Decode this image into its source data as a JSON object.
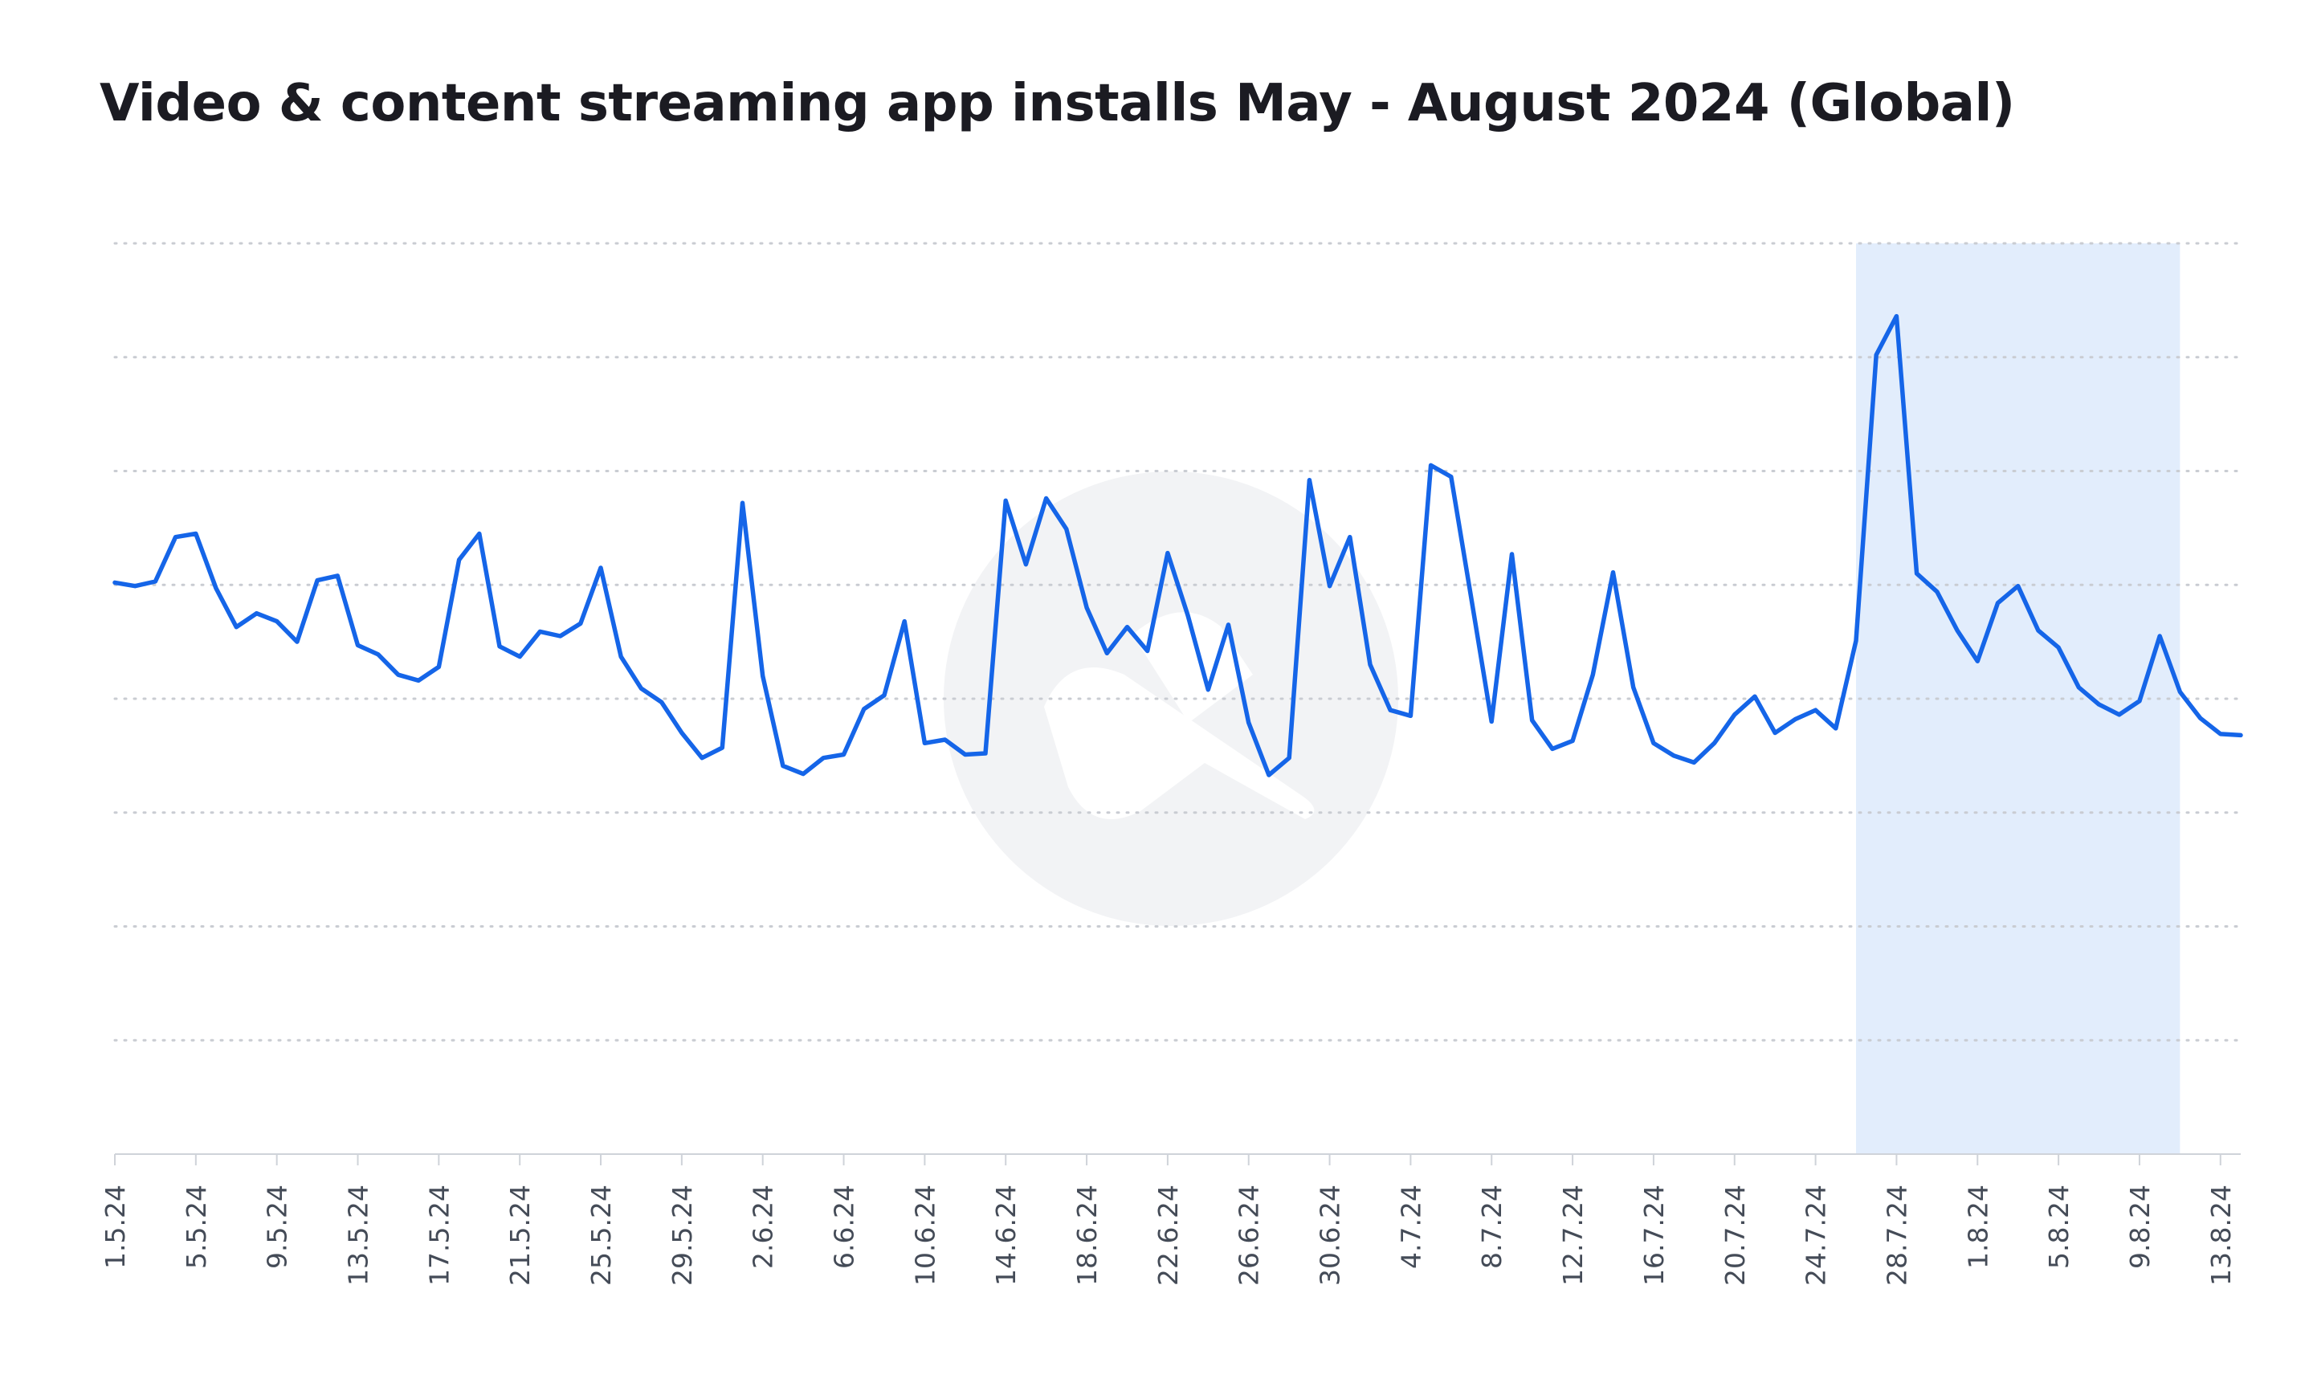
{
  "title": "Video & content streaming app installs May - August 2024 (Global)",
  "colors": {
    "line": "#1565e8",
    "highlight": "#e2edfc",
    "grid": "#c9ccd2",
    "axis": "#cfd3d9",
    "text": "#444b57",
    "watermark": "#f2f3f5"
  },
  "chart_data": {
    "type": "line",
    "title": "Video & content streaming app installs May - August 2024 (Global)",
    "xlabel": "",
    "ylabel": "",
    "ylim": [
      0,
      8
    ],
    "grid": true,
    "y_tick_labels_visible": false,
    "x_start": "1.5.24",
    "x_tick_labels": [
      "1.5.24",
      "5.5.24",
      "9.5.24",
      "13.5.24",
      "17.5.24",
      "21.5.24",
      "25.5.24",
      "29.5.24",
      "2.6.24",
      "6.6.24",
      "10.6.24",
      "14.6.24",
      "18.6.24",
      "22.6.24",
      "26.6.24",
      "30.6.24",
      "4.7.24",
      "8.7.24",
      "12.7.24",
      "16.7.24",
      "20.7.24",
      "24.7.24",
      "28.7.24",
      "1.8.24",
      "5.8.24",
      "9.8.24",
      "13.8.24"
    ],
    "highlight": {
      "from": "26.7.24",
      "to": "11.8.24"
    },
    "series": [
      {
        "values": [
          5.02,
          4.99,
          5.03,
          5.42,
          5.45,
          4.97,
          4.63,
          4.75,
          4.68,
          4.5,
          5.04,
          5.08,
          4.47,
          4.39,
          4.21,
          4.16,
          4.28,
          5.22,
          5.45,
          4.46,
          4.37,
          4.59,
          4.55,
          4.66,
          5.15,
          4.37,
          4.09,
          3.97,
          3.7,
          3.48,
          3.57,
          5.72,
          4.2,
          3.41,
          3.34,
          3.48,
          3.51,
          3.91,
          4.03,
          4.68,
          3.61,
          3.64,
          3.51,
          3.52,
          5.74,
          5.18,
          5.76,
          5.49,
          4.8,
          4.4,
          4.63,
          4.42,
          5.28,
          4.73,
          4.08,
          4.65,
          3.79,
          3.33,
          3.48,
          5.92,
          4.99,
          5.42,
          4.3,
          3.9,
          3.85,
          6.05,
          5.95,
          4.88,
          3.8,
          5.27,
          3.81,
          3.56,
          3.63,
          4.21,
          5.11,
          4.1,
          3.61,
          3.5,
          3.44,
          3.61,
          3.86,
          4.02,
          3.7,
          3.82,
          3.9,
          3.74,
          4.51,
          7.02,
          7.36,
          5.1,
          4.94,
          4.6,
          4.33,
          4.84,
          4.99,
          4.6,
          4.45,
          4.1,
          3.95,
          3.86,
          3.98,
          4.55,
          4.06,
          3.83,
          3.69,
          3.68
        ]
      }
    ]
  }
}
